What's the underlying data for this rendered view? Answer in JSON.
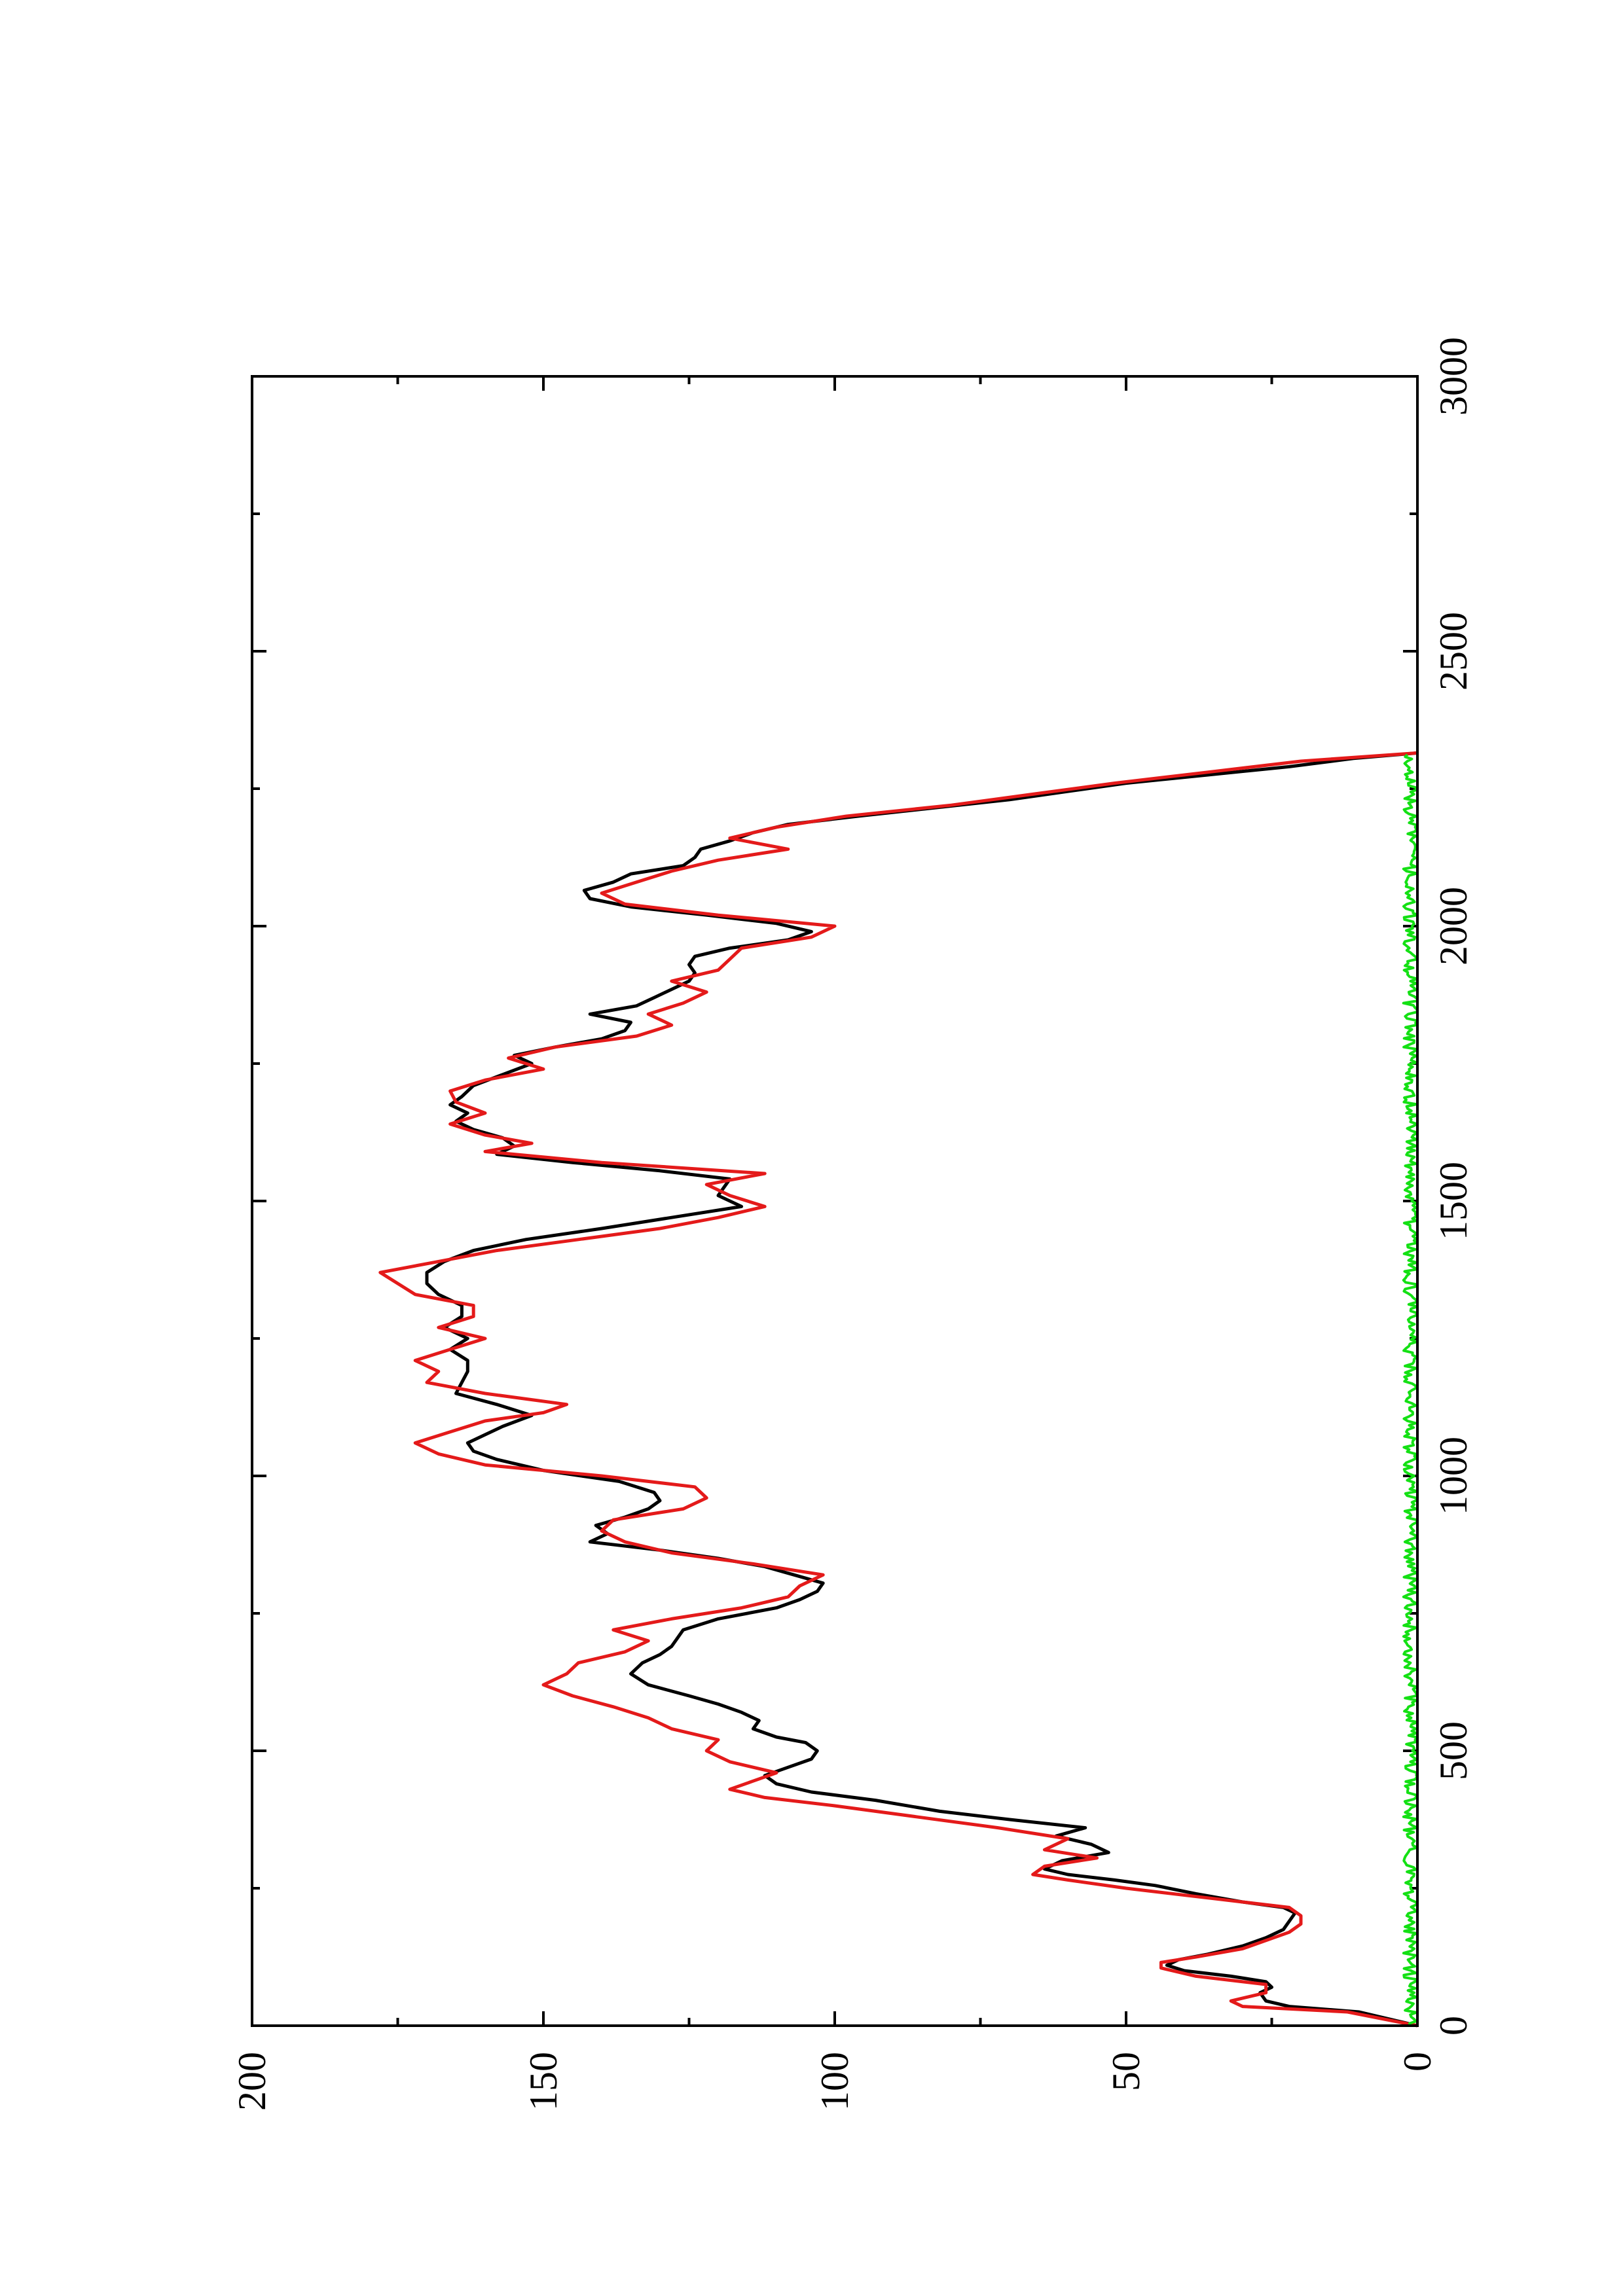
{
  "chart_data": {
    "type": "line",
    "title": "",
    "xlabel": "",
    "ylabel": "",
    "orientation": "rotated-90-ccw",
    "xlim": [
      0,
      3000
    ],
    "ylim": [
      0,
      200
    ],
    "x_ticks": [
      0,
      500,
      1000,
      1500,
      2000,
      2500,
      3000
    ],
    "x_ticks_minor": [
      250,
      750,
      1250,
      1750,
      2250,
      2750
    ],
    "y_ticks": [
      0,
      50,
      100,
      150,
      200
    ],
    "y_ticks_minor": [
      25,
      75,
      125,
      175
    ],
    "x_tick_labels": [
      "0",
      "500",
      "1000",
      "1500",
      "2000",
      "2500",
      "3000"
    ],
    "y_tick_labels": [
      "0",
      "50",
      "100",
      "150",
      "200"
    ],
    "grid": false,
    "legend": "none",
    "series": [
      {
        "color": "#000000",
        "points": [
          [
            0,
            0
          ],
          [
            25,
            10
          ],
          [
            35,
            22
          ],
          [
            45,
            26
          ],
          [
            60,
            27
          ],
          [
            70,
            25
          ],
          [
            80,
            26
          ],
          [
            90,
            32
          ],
          [
            100,
            40
          ],
          [
            110,
            43
          ],
          [
            120,
            41
          ],
          [
            130,
            36
          ],
          [
            145,
            30
          ],
          [
            160,
            26
          ],
          [
            175,
            23
          ],
          [
            190,
            22
          ],
          [
            205,
            21
          ],
          [
            215,
            23
          ],
          [
            225,
            30
          ],
          [
            240,
            38
          ],
          [
            255,
            45
          ],
          [
            265,
            52
          ],
          [
            275,
            60
          ],
          [
            285,
            64
          ],
          [
            300,
            61
          ],
          [
            315,
            53
          ],
          [
            330,
            56
          ],
          [
            345,
            62
          ],
          [
            360,
            57
          ],
          [
            375,
            70
          ],
          [
            390,
            82
          ],
          [
            410,
            93
          ],
          [
            425,
            104
          ],
          [
            440,
            110
          ],
          [
            455,
            112
          ],
          [
            470,
            108
          ],
          [
            485,
            104
          ],
          [
            500,
            103
          ],
          [
            515,
            105
          ],
          [
            525,
            110
          ],
          [
            540,
            114
          ],
          [
            555,
            113
          ],
          [
            570,
            116
          ],
          [
            585,
            120
          ],
          [
            600,
            125
          ],
          [
            620,
            132
          ],
          [
            640,
            135
          ],
          [
            660,
            133
          ],
          [
            675,
            130
          ],
          [
            690,
            128
          ],
          [
            705,
            127
          ],
          [
            720,
            126
          ],
          [
            740,
            120
          ],
          [
            760,
            110
          ],
          [
            775,
            106
          ],
          [
            790,
            103
          ],
          [
            805,
            102
          ],
          [
            820,
            107
          ],
          [
            835,
            112
          ],
          [
            850,
            120
          ],
          [
            865,
            130
          ],
          [
            880,
            142
          ],
          [
            895,
            139
          ],
          [
            910,
            141
          ],
          [
            925,
            136
          ],
          [
            940,
            132
          ],
          [
            955,
            130
          ],
          [
            970,
            131
          ],
          [
            990,
            137
          ],
          [
            1010,
            150
          ],
          [
            1030,
            158
          ],
          [
            1045,
            162
          ],
          [
            1060,
            163
          ],
          [
            1075,
            160
          ],
          [
            1090,
            157
          ],
          [
            1110,
            152
          ],
          [
            1130,
            158
          ],
          [
            1150,
            165
          ],
          [
            1170,
            164
          ],
          [
            1190,
            163
          ],
          [
            1210,
            163
          ],
          [
            1230,
            166
          ],
          [
            1250,
            163
          ],
          [
            1270,
            167
          ],
          [
            1290,
            164
          ],
          [
            1310,
            164
          ],
          [
            1330,
            168
          ],
          [
            1350,
            170
          ],
          [
            1370,
            170
          ],
          [
            1390,
            167
          ],
          [
            1410,
            162
          ],
          [
            1430,
            153
          ],
          [
            1450,
            140
          ],
          [
            1470,
            128
          ],
          [
            1490,
            116
          ],
          [
            1510,
            120
          ],
          [
            1525,
            119
          ],
          [
            1540,
            118
          ],
          [
            1555,
            130
          ],
          [
            1570,
            145
          ],
          [
            1585,
            158
          ],
          [
            1600,
            155
          ],
          [
            1615,
            157
          ],
          [
            1630,
            162
          ],
          [
            1645,
            165
          ],
          [
            1660,
            163
          ],
          [
            1675,
            166
          ],
          [
            1690,
            164
          ],
          [
            1710,
            162
          ],
          [
            1730,
            157
          ],
          [
            1750,
            152
          ],
          [
            1765,
            155
          ],
          [
            1780,
            148
          ],
          [
            1795,
            140
          ],
          [
            1810,
            136
          ],
          [
            1825,
            135
          ],
          [
            1840,
            142
          ],
          [
            1855,
            134
          ],
          [
            1870,
            131
          ],
          [
            1885,
            128
          ],
          [
            1900,
            125
          ],
          [
            1915,
            124
          ],
          [
            1930,
            125
          ],
          [
            1945,
            124
          ],
          [
            1960,
            118
          ],
          [
            1975,
            108
          ],
          [
            1990,
            104
          ],
          [
            2005,
            110
          ],
          [
            2020,
            122
          ],
          [
            2035,
            135
          ],
          [
            2050,
            142
          ],
          [
            2065,
            143
          ],
          [
            2080,
            138
          ],
          [
            2095,
            135
          ],
          [
            2110,
            126
          ],
          [
            2125,
            124
          ],
          [
            2140,
            123
          ],
          [
            2155,
            118
          ],
          [
            2170,
            114
          ],
          [
            2185,
            108
          ],
          [
            2200,
            96
          ],
          [
            2215,
            83
          ],
          [
            2230,
            70
          ],
          [
            2245,
            60
          ],
          [
            2260,
            50
          ],
          [
            2275,
            36
          ],
          [
            2290,
            22
          ],
          [
            2305,
            11
          ],
          [
            2315,
            0
          ]
        ]
      },
      {
        "color": "#e41a1a",
        "points": [
          [
            0,
            0
          ],
          [
            25,
            12
          ],
          [
            35,
            30
          ],
          [
            45,
            32
          ],
          [
            60,
            26
          ],
          [
            75,
            26
          ],
          [
            90,
            38
          ],
          [
            105,
            44
          ],
          [
            115,
            44
          ],
          [
            125,
            38
          ],
          [
            140,
            30
          ],
          [
            155,
            26
          ],
          [
            170,
            22
          ],
          [
            185,
            20
          ],
          [
            200,
            20
          ],
          [
            215,
            22
          ],
          [
            230,
            34
          ],
          [
            250,
            50
          ],
          [
            265,
            60
          ],
          [
            275,
            66
          ],
          [
            290,
            64
          ],
          [
            305,
            55
          ],
          [
            320,
            64
          ],
          [
            340,
            60
          ],
          [
            360,
            72
          ],
          [
            380,
            86
          ],
          [
            400,
            100
          ],
          [
            415,
            112
          ],
          [
            430,
            118
          ],
          [
            445,
            114
          ],
          [
            460,
            110
          ],
          [
            480,
            118
          ],
          [
            500,
            122
          ],
          [
            520,
            120
          ],
          [
            540,
            128
          ],
          [
            560,
            132
          ],
          [
            580,
            138
          ],
          [
            600,
            145
          ],
          [
            620,
            150
          ],
          [
            640,
            146
          ],
          [
            660,
            144
          ],
          [
            680,
            136
          ],
          [
            700,
            132
          ],
          [
            720,
            138
          ],
          [
            740,
            128
          ],
          [
            760,
            116
          ],
          [
            780,
            108
          ],
          [
            800,
            106
          ],
          [
            820,
            102
          ],
          [
            840,
            114
          ],
          [
            860,
            128
          ],
          [
            880,
            136
          ],
          [
            900,
            140
          ],
          [
            920,
            138
          ],
          [
            940,
            126
          ],
          [
            960,
            122
          ],
          [
            980,
            124
          ],
          [
            1000,
            140
          ],
          [
            1020,
            160
          ],
          [
            1040,
            168
          ],
          [
            1060,
            172
          ],
          [
            1080,
            166
          ],
          [
            1100,
            160
          ],
          [
            1115,
            150
          ],
          [
            1130,
            146
          ],
          [
            1150,
            160
          ],
          [
            1170,
            170
          ],
          [
            1190,
            168
          ],
          [
            1210,
            172
          ],
          [
            1230,
            166
          ],
          [
            1250,
            160
          ],
          [
            1270,
            168
          ],
          [
            1290,
            162
          ],
          [
            1310,
            162
          ],
          [
            1330,
            172
          ],
          [
            1350,
            175
          ],
          [
            1370,
            178
          ],
          [
            1390,
            168
          ],
          [
            1410,
            158
          ],
          [
            1430,
            144
          ],
          [
            1450,
            130
          ],
          [
            1470,
            120
          ],
          [
            1490,
            112
          ],
          [
            1510,
            118
          ],
          [
            1530,
            122
          ],
          [
            1550,
            112
          ],
          [
            1570,
            140
          ],
          [
            1590,
            160
          ],
          [
            1605,
            152
          ],
          [
            1620,
            160
          ],
          [
            1640,
            166
          ],
          [
            1660,
            160
          ],
          [
            1680,
            165
          ],
          [
            1700,
            166
          ],
          [
            1720,
            160
          ],
          [
            1740,
            150
          ],
          [
            1760,
            156
          ],
          [
            1780,
            148
          ],
          [
            1800,
            134
          ],
          [
            1820,
            128
          ],
          [
            1840,
            132
          ],
          [
            1860,
            126
          ],
          [
            1880,
            122
          ],
          [
            1900,
            128
          ],
          [
            1920,
            120
          ],
          [
            1940,
            118
          ],
          [
            1960,
            116
          ],
          [
            1980,
            104
          ],
          [
            2000,
            100
          ],
          [
            2020,
            120
          ],
          [
            2040,
            136
          ],
          [
            2060,
            140
          ],
          [
            2080,
            134
          ],
          [
            2100,
            128
          ],
          [
            2120,
            120
          ],
          [
            2140,
            108
          ],
          [
            2160,
            118
          ],
          [
            2180,
            110
          ],
          [
            2200,
            98
          ],
          [
            2220,
            80
          ],
          [
            2240,
            66
          ],
          [
            2260,
            52
          ],
          [
            2280,
            36
          ],
          [
            2300,
            20
          ],
          [
            2315,
            0
          ]
        ]
      },
      {
        "color": "#14e014",
        "x_range": [
          0,
          2315
        ],
        "y_range": [
          0,
          3
        ],
        "mean": 1.2
      }
    ]
  }
}
